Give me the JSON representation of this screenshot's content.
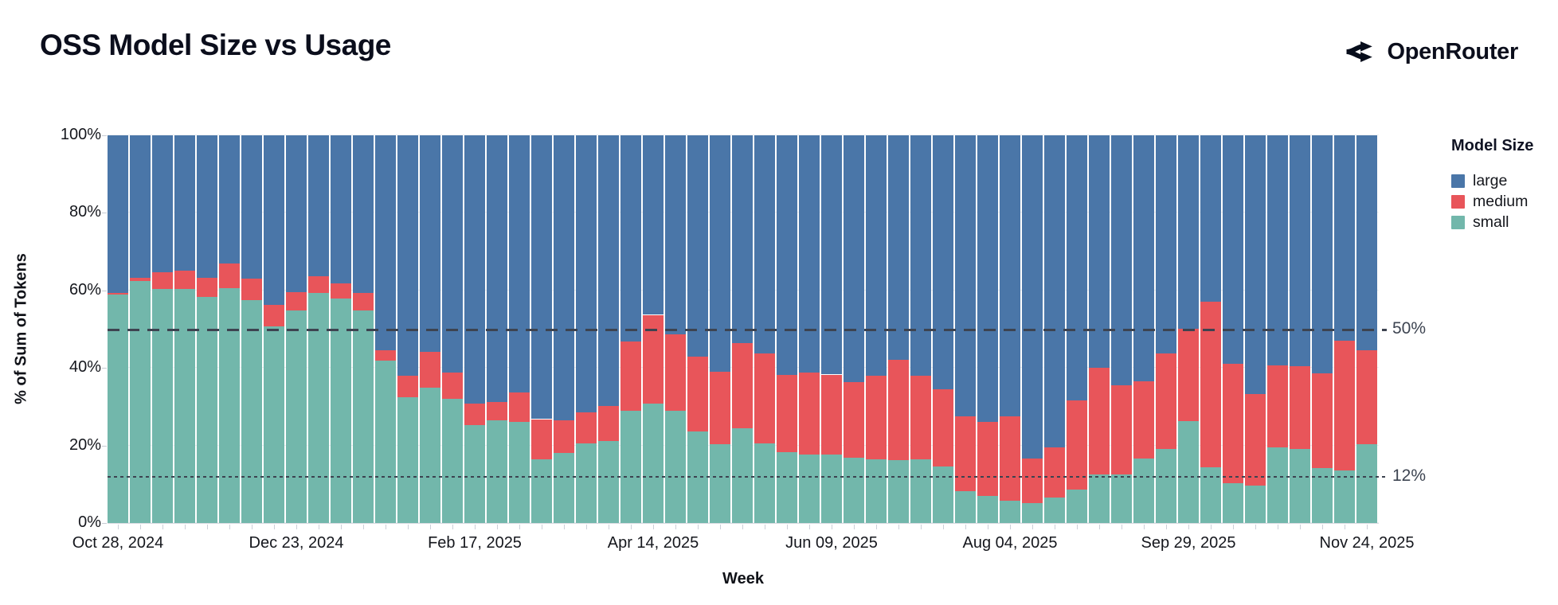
{
  "header": {
    "title": "OSS Model Size vs Usage",
    "brand": "OpenRouter"
  },
  "chart_data": {
    "type": "bar",
    "stacked": true,
    "normalized_to_100": true,
    "title": "OSS Model Size vs Usage",
    "xlabel": "Week",
    "ylabel": "% of Sum of Tokens",
    "ylim": [
      0,
      100
    ],
    "y_tick_labels": [
      "0%",
      "20%",
      "40%",
      "60%",
      "80%",
      "100%"
    ],
    "x_tick_indices": [
      0,
      8,
      16,
      24,
      32,
      40,
      48,
      56
    ],
    "x_tick_labels": [
      "Oct 28, 2024",
      "Dec 23, 2024",
      "Feb 17, 2025",
      "Apr 14, 2025",
      "Jun 09, 2025",
      "Aug 04, 2025",
      "Sep 29, 2025",
      "Nov 24, 2025"
    ],
    "grid": true,
    "legend": {
      "title": "Model Size",
      "position": "right",
      "entries": [
        {
          "name": "large",
          "color": "#4a76a8"
        },
        {
          "name": "medium",
          "color": "#e8555a"
        },
        {
          "name": "small",
          "color": "#72b7ab"
        }
      ]
    },
    "annotations": [
      {
        "label": "50%",
        "value": 50,
        "style": "dashed"
      },
      {
        "label": "12%",
        "value": 12,
        "style": "dotted"
      }
    ],
    "weeks": [
      "Oct 28, 2024",
      "Nov 04, 2024",
      "Nov 11, 2024",
      "Nov 18, 2024",
      "Nov 25, 2024",
      "Dec 02, 2024",
      "Dec 09, 2024",
      "Dec 16, 2024",
      "Dec 23, 2024",
      "Dec 30, 2024",
      "Jan 06, 2025",
      "Jan 13, 2025",
      "Jan 20, 2025",
      "Jan 27, 2025",
      "Feb 03, 2025",
      "Feb 10, 2025",
      "Feb 17, 2025",
      "Feb 24, 2025",
      "Mar 03, 2025",
      "Mar 10, 2025",
      "Mar 17, 2025",
      "Mar 24, 2025",
      "Mar 31, 2025",
      "Apr 07, 2025",
      "Apr 14, 2025",
      "Apr 21, 2025",
      "Apr 28, 2025",
      "May 05, 2025",
      "May 12, 2025",
      "May 19, 2025",
      "May 26, 2025",
      "Jun 02, 2025",
      "Jun 09, 2025",
      "Jun 16, 2025",
      "Jun 23, 2025",
      "Jun 30, 2025",
      "Jul 07, 2025",
      "Jul 14, 2025",
      "Jul 21, 2025",
      "Jul 28, 2025",
      "Aug 04, 2025",
      "Aug 11, 2025",
      "Aug 18, 2025",
      "Aug 25, 2025",
      "Sep 01, 2025",
      "Sep 08, 2025",
      "Sep 15, 2025",
      "Sep 22, 2025",
      "Sep 29, 2025",
      "Oct 06, 2025",
      "Oct 13, 2025",
      "Oct 20, 2025",
      "Oct 27, 2025",
      "Nov 03, 2025",
      "Nov 10, 2025",
      "Nov 17, 2025",
      "Nov 24, 2025"
    ],
    "series": [
      {
        "name": "small",
        "color": "#72b7ab",
        "values": [
          58.9,
          62.4,
          60.4,
          60.3,
          58.3,
          60.6,
          57.5,
          50.8,
          54.8,
          59.4,
          58.0,
          54.9,
          41.9,
          32.4,
          34.9,
          32.1,
          25.3,
          26.5,
          26.0,
          16.5,
          18.0,
          20.6,
          21.2,
          29.0,
          30.9,
          28.9,
          23.7,
          20.4,
          24.4,
          20.6,
          18.2,
          17.7,
          17.7,
          16.9,
          16.5,
          16.3,
          16.4,
          14.6,
          8.2,
          6.9,
          5.7,
          5.2,
          6.6,
          8.6,
          12.6,
          12.5,
          16.7,
          19.1,
          26.2,
          14.3,
          10.3,
          9.7,
          19.5,
          19.1,
          14.1,
          13.6,
          20.3
        ]
      },
      {
        "name": "medium",
        "color": "#e8555a",
        "values": [
          0.5,
          0.9,
          4.2,
          4.8,
          5.0,
          6.3,
          5.5,
          5.5,
          4.8,
          4.3,
          3.8,
          4.5,
          2.6,
          5.5,
          9.3,
          6.7,
          5.6,
          4.8,
          7.7,
          10.3,
          8.5,
          7.9,
          9.0,
          17.8,
          22.8,
          19.7,
          19.2,
          18.6,
          22.1,
          23.2,
          19.9,
          21.1,
          20.6,
          19.5,
          21.4,
          25.7,
          21.5,
          19.9,
          19.4,
          19.1,
          21.9,
          11.5,
          13.0,
          23.1,
          27.4,
          23.1,
          19.8,
          24.7,
          23.9,
          42.8,
          30.8,
          23.6,
          21.1,
          21.3,
          24.5,
          33.4,
          24.2
        ]
      },
      {
        "name": "large",
        "color": "#4a76a8",
        "values": [
          40.6,
          36.7,
          35.4,
          34.9,
          36.7,
          33.1,
          37.0,
          43.7,
          40.4,
          36.3,
          38.2,
          40.6,
          55.5,
          62.1,
          55.8,
          61.2,
          69.1,
          68.7,
          66.3,
          73.2,
          73.5,
          71.5,
          69.8,
          53.2,
          46.3,
          51.4,
          57.1,
          61.0,
          53.5,
          56.2,
          61.9,
          61.2,
          61.7,
          63.6,
          62.1,
          58.0,
          62.1,
          65.5,
          72.4,
          74.0,
          72.4,
          83.3,
          80.4,
          68.3,
          60.0,
          64.4,
          63.5,
          56.2,
          49.9,
          42.9,
          58.9,
          66.7,
          59.4,
          59.6,
          61.4,
          53.0,
          55.5
        ]
      }
    ]
  }
}
